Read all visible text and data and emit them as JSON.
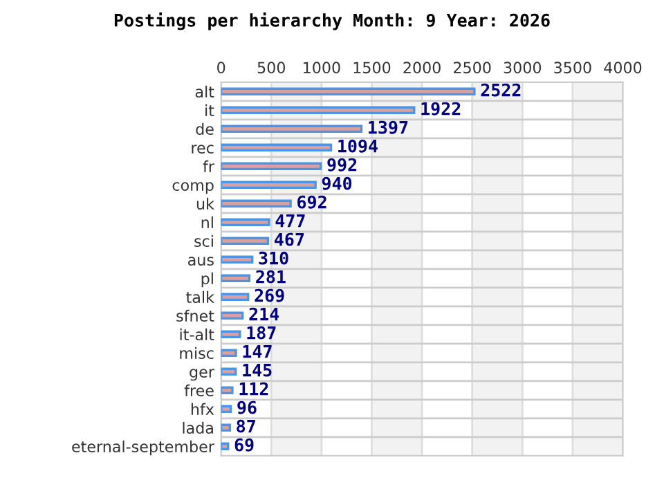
{
  "chart_data": {
    "type": "bar",
    "orientation": "horizontal",
    "title": "Postings per hierarchy Month: 9 Year: 2026",
    "categories": [
      "alt",
      "it",
      "de",
      "rec",
      "fr",
      "comp",
      "uk",
      "nl",
      "sci",
      "aus",
      "pl",
      "talk",
      "sfnet",
      "it-alt",
      "misc",
      "ger",
      "free",
      "hfx",
      "lada",
      "eternal-september"
    ],
    "values": [
      2522,
      1922,
      1397,
      1094,
      992,
      940,
      692,
      477,
      467,
      310,
      281,
      269,
      214,
      187,
      147,
      145,
      112,
      96,
      87,
      69
    ],
    "color": "#d9a0a0",
    "xlim": [
      0,
      4000
    ],
    "xticks": [
      0,
      500,
      1000,
      1500,
      2000,
      2500,
      3000,
      3500,
      4000
    ],
    "bands": [
      {
        "axis": "x",
        "from": 500,
        "to": 1000,
        "color": "#f2f2f2"
      },
      {
        "axis": "x",
        "from": 1500,
        "to": 2000,
        "color": "#f2f2f2"
      },
      {
        "axis": "x",
        "from": 2500,
        "to": 3000,
        "color": "#f2f2f2"
      },
      {
        "axis": "x",
        "from": 3500,
        "to": 4000,
        "color": "#f2f2f2"
      }
    ],
    "grid": true,
    "data_labels": true,
    "legend": false
  }
}
